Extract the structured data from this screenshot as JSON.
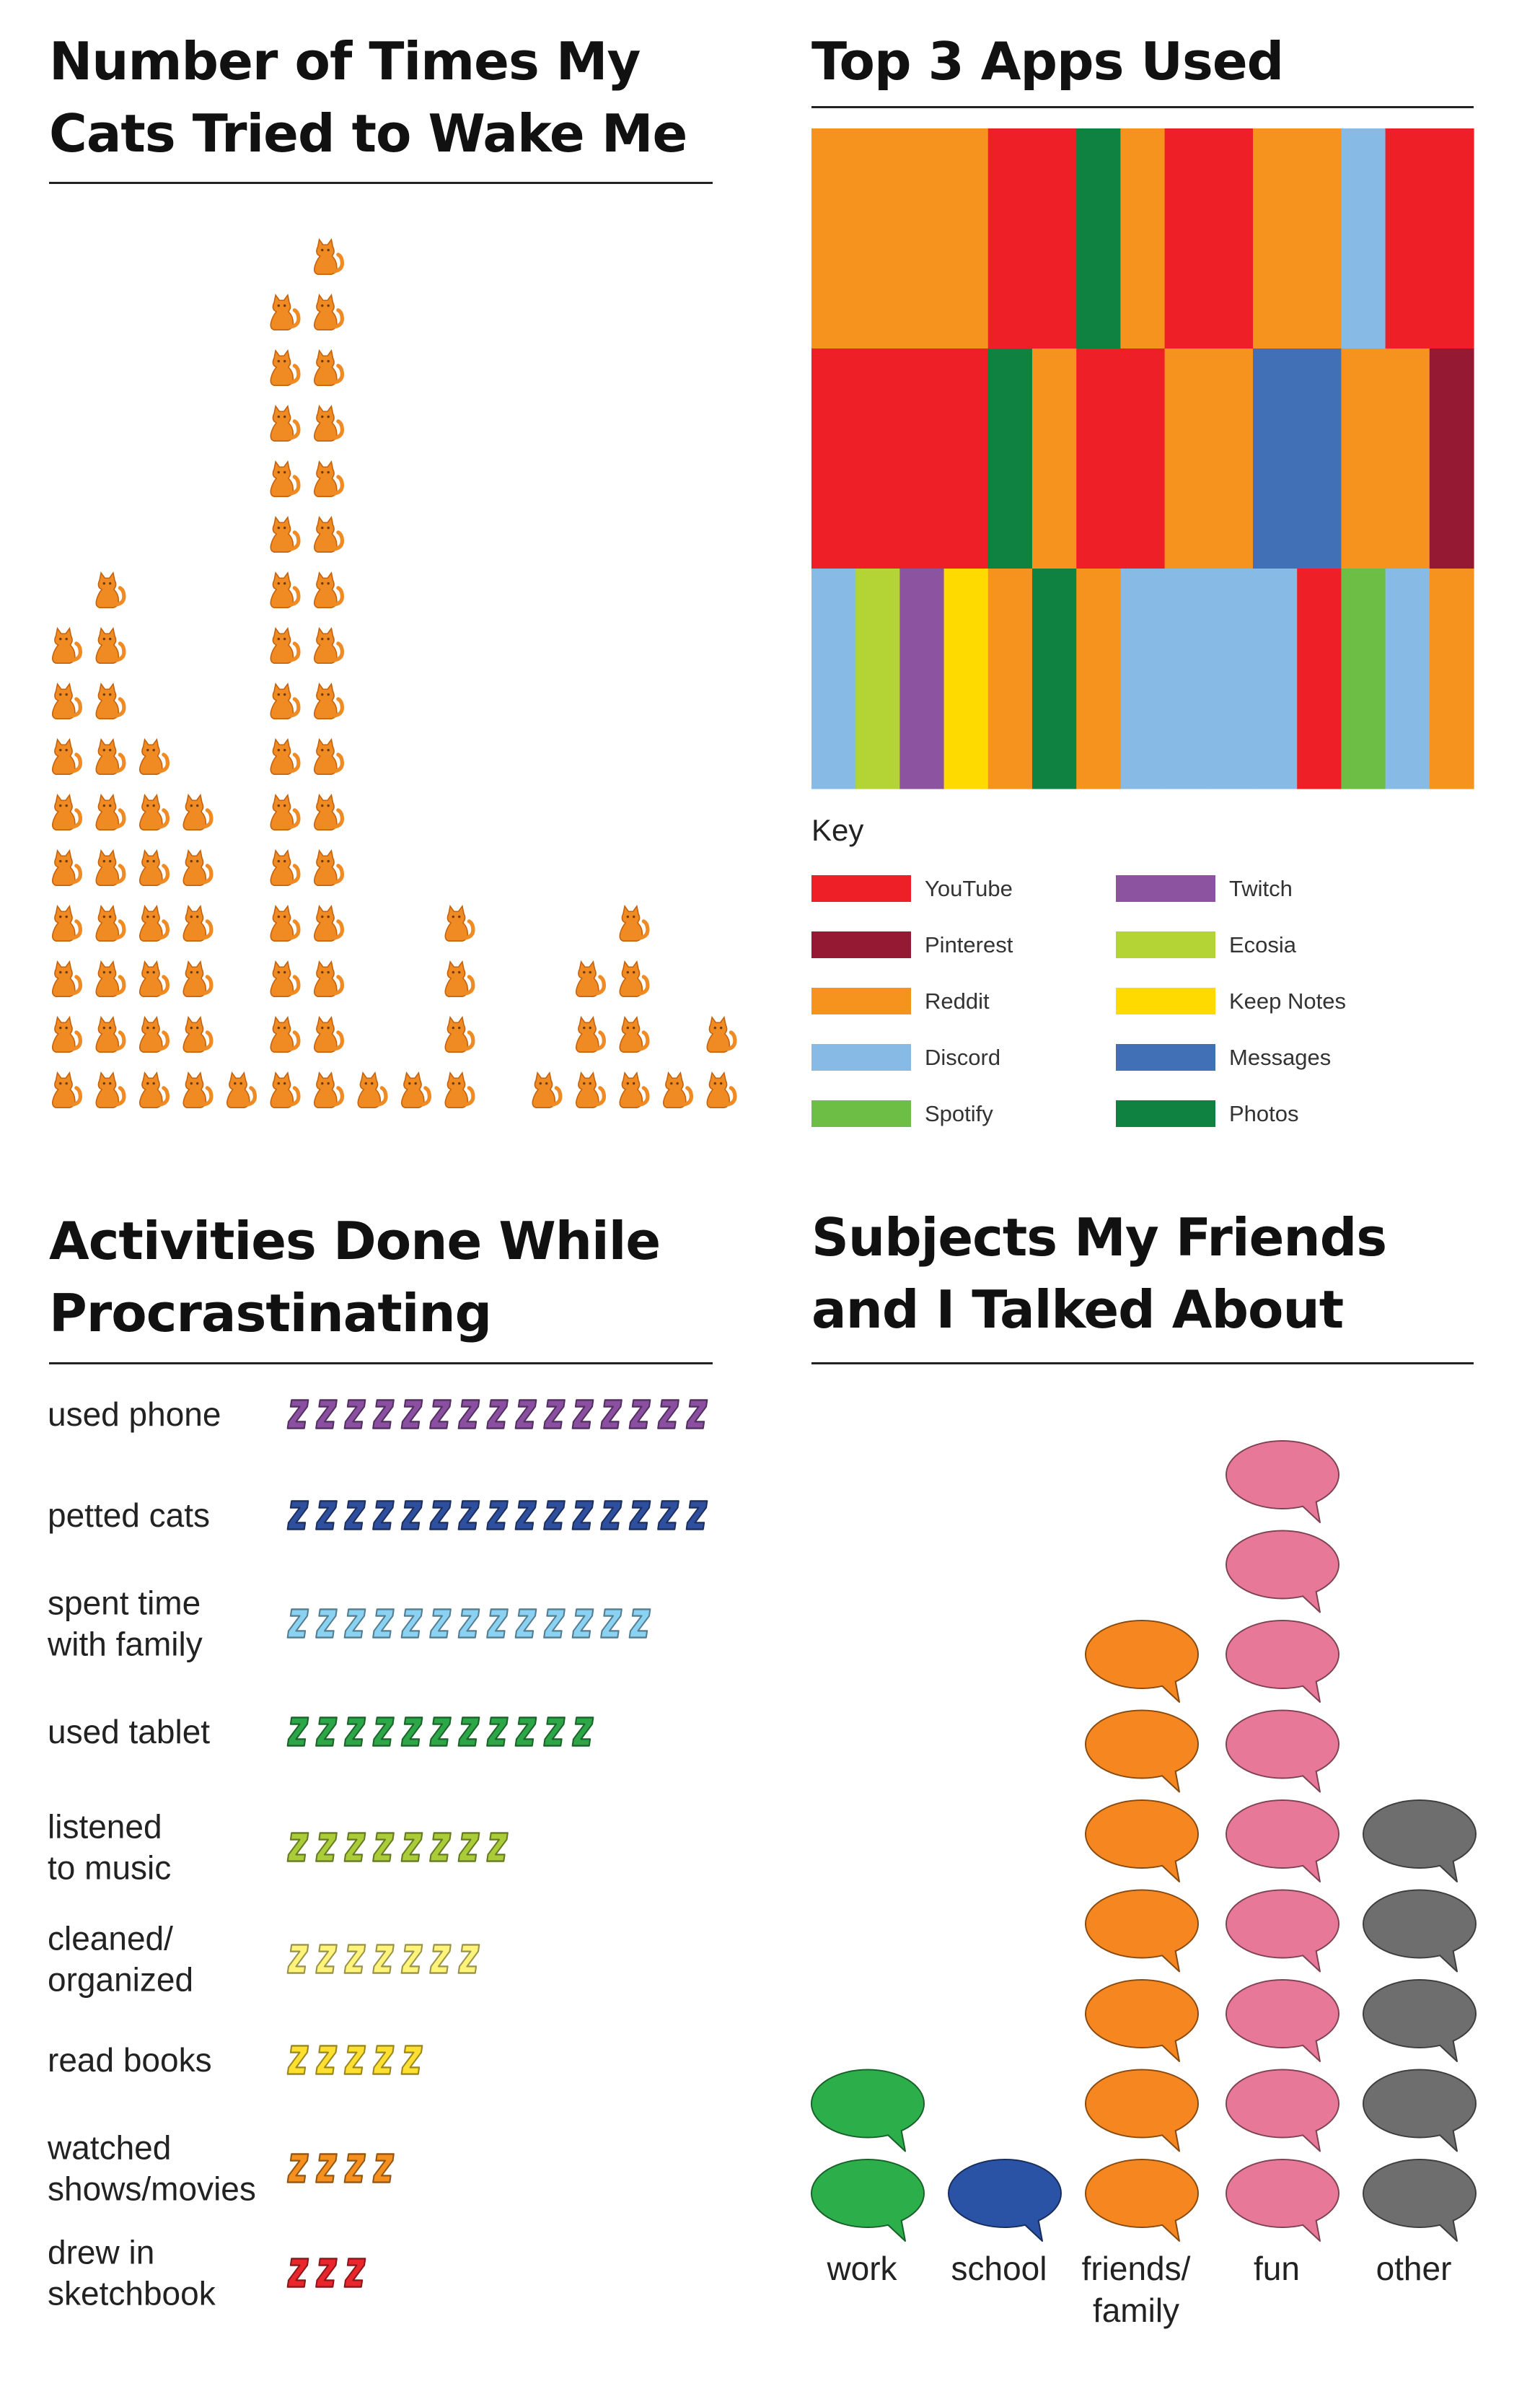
{
  "panels": {
    "cats": {
      "title_line1": "Number of Times My",
      "title_line2": "Cats Tried to Wake Me"
    },
    "apps": {
      "title": "Top 3 Apps Used",
      "key_label": "Key"
    },
    "activities": {
      "title_line1": "Activities Done While",
      "title_line2": "Procrastinating"
    },
    "subjects": {
      "title_line1": "Subjects My Friends",
      "title_line2": "and I Talked About"
    }
  },
  "icons": {
    "cat": "cat-icon",
    "zzz": "z-letter-icon",
    "bubble": "speech-bubble-icon"
  },
  "chart_data": [
    {
      "type": "bar",
      "id": "cats",
      "title": "Number of Times My Cats Tried to Wake Me",
      "values": [
        9,
        10,
        7,
        6,
        1,
        15,
        16,
        1,
        1,
        4,
        0,
        1,
        3,
        4,
        1,
        2
      ],
      "color": "#F08A22"
    },
    {
      "type": "heatmap",
      "id": "apps",
      "title": "Top 3 Apps Used",
      "rows": [
        [
          "Reddit",
          "Reddit",
          "Reddit",
          "Reddit",
          "YouTube",
          "YouTube",
          "Photos",
          "Reddit",
          "YouTube",
          "YouTube",
          "Reddit",
          "Reddit",
          "Discord",
          "YouTube",
          "YouTube"
        ],
        [
          "YouTube",
          "YouTube",
          "YouTube",
          "YouTube",
          "Photos",
          "Reddit",
          "YouTube",
          "YouTube",
          "Reddit",
          "Reddit",
          "Messages",
          "Messages",
          "Reddit",
          "Reddit",
          "Pinterest"
        ],
        [
          "Discord",
          "Ecosia",
          "Twitch",
          "Keep Notes",
          "Reddit",
          "Photos",
          "Reddit",
          "Discord",
          "Discord",
          "Discord",
          "Discord",
          "YouTube",
          "Spotify",
          "Discord",
          "Reddit"
        ]
      ],
      "legend": [
        {
          "name": "YouTube",
          "color": "#EE1F26"
        },
        {
          "name": "Pinterest",
          "color": "#951933"
        },
        {
          "name": "Reddit",
          "color": "#F6921E"
        },
        {
          "name": "Discord",
          "color": "#87BBE5"
        },
        {
          "name": "Spotify",
          "color": "#6DBE44"
        },
        {
          "name": "Twitch",
          "color": "#8C53A1"
        },
        {
          "name": "Ecosia",
          "color": "#B4D334"
        },
        {
          "name": "Keep Notes",
          "color": "#FFDA00"
        },
        {
          "name": "Messages",
          "color": "#4270B6"
        },
        {
          "name": "Photos",
          "color": "#0F8241"
        }
      ]
    },
    {
      "type": "bar",
      "id": "activities",
      "title": "Activities Done While Procrastinating",
      "categories": [
        "used phone",
        "petted cats",
        "spent time with family",
        "used tablet",
        "listened to music",
        "cleaned/ organized",
        "read books",
        "watched shows/movies",
        "drew in sketchbook"
      ],
      "category_lines": [
        [
          "used phone"
        ],
        [
          "petted cats"
        ],
        [
          "spent time",
          "with family"
        ],
        [
          "used tablet"
        ],
        [
          "listened",
          "to music"
        ],
        [
          "cleaned/",
          "organized"
        ],
        [
          "read books"
        ],
        [
          "watched",
          "shows/movies"
        ],
        [
          "drew in",
          "sketchbook"
        ]
      ],
      "values": [
        15,
        15,
        13,
        11,
        8,
        7,
        5,
        4,
        3
      ],
      "colors": [
        "#8A4FA0",
        "#2E4F9D",
        "#8BD2F2",
        "#2CA646",
        "#A9CC38",
        "#FFF37A",
        "#FFE030",
        "#F5901E",
        "#E8262C"
      ]
    },
    {
      "type": "bar",
      "id": "subjects",
      "title": "Subjects My Friends and I Talked About",
      "categories": [
        "work",
        "school",
        "friends/ family",
        "fun",
        "other"
      ],
      "category_lines": [
        [
          "work"
        ],
        [
          "school"
        ],
        [
          "friends/",
          "family"
        ],
        [
          "fun"
        ],
        [
          "other"
        ]
      ],
      "values": [
        2,
        1,
        7,
        9,
        5
      ],
      "colors": [
        "#2CAF4A",
        "#2A52A5",
        "#F6861F",
        "#E77898",
        "#6E6E6E"
      ]
    }
  ]
}
